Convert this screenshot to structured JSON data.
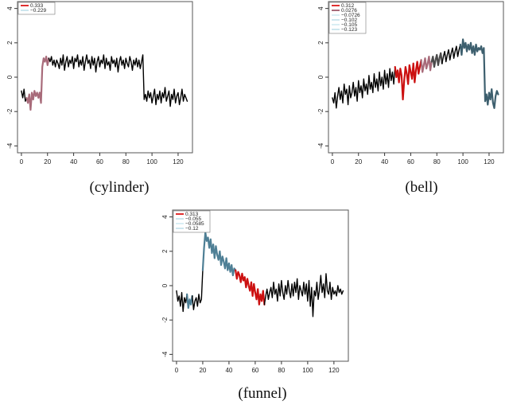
{
  "colors": {
    "base": "#000000",
    "red": "#cc1111",
    "legend_red": "#e03030",
    "mauve": "#a86b7a",
    "teal_dark": "#3d5f6e",
    "teal_mid": "#4e7f95",
    "slate": "#4a4a4a",
    "pale_blue": "#cde6ee",
    "pale_cyan": "#d9eef4",
    "frame": "#555555"
  },
  "chart_data": [
    {
      "type": "line",
      "caption": "(cylinder)",
      "xlim": [
        -3,
        131
      ],
      "ylim": [
        -4.4,
        4.4
      ],
      "xticks": [
        0,
        20,
        40,
        60,
        80,
        100,
        120
      ],
      "yticks": [
        -4,
        -2,
        0,
        2,
        4
      ],
      "legend_position": "top-left",
      "legend": [
        {
          "label": "0.333",
          "color": "legend_red"
        },
        {
          "label": "−0.229",
          "color": "pale_blue"
        }
      ],
      "y": [
        -0.8,
        -1.2,
        -0.7,
        -1.4,
        -1.2,
        -1.5,
        -1.0,
        -1.9,
        -0.9,
        -1.3,
        -0.8,
        -1.1,
        -0.9,
        -1.2,
        -0.9,
        -1.5,
        0.6,
        1.1,
        0.9,
        1.2,
        0.7,
        1.1,
        0.9,
        1.2,
        0.7,
        1.0,
        0.6,
        1.0,
        0.8,
        0.5,
        1.1,
        0.7,
        1.3,
        0.4,
        0.9,
        1.2,
        0.6,
        1.0,
        0.8,
        1.2,
        0.5,
        1.1,
        0.9,
        1.3,
        0.6,
        1.0,
        0.7,
        1.2,
        0.4,
        0.9,
        1.3,
        0.8,
        1.0,
        0.5,
        1.2,
        0.7,
        1.1,
        0.3,
        0.9,
        1.2,
        0.6,
        1.0,
        0.8,
        1.3,
        0.5,
        1.1,
        0.7,
        0.9,
        0.4,
        1.2,
        0.8,
        1.0,
        0.6,
        1.1,
        0.3,
        0.9,
        1.2,
        0.7,
        1.0,
        0.5,
        1.1,
        0.8,
        0.6,
        1.2,
        0.9,
        0.4,
        1.0,
        0.7,
        1.1,
        0.6,
        1.0,
        0.5,
        0.9,
        1.3,
        -1.3,
        -1.0,
        -1.4,
        -0.8,
        -1.2,
        -0.9,
        -1.5,
        -1.1,
        -0.7,
        -1.6,
        -1.0,
        -1.3,
        -0.8,
        -1.5,
        -0.9,
        -1.2,
        -0.6,
        -1.4,
        -1.1,
        -0.8,
        -1.7,
        -1.0,
        -1.3,
        -0.7,
        -1.5,
        -1.1,
        -0.9,
        -1.6,
        -1.2,
        -0.7,
        -1.4,
        -1.0,
        -1.2,
        -1.4
      ],
      "segments": [
        {
          "from": 0,
          "to": 4,
          "color": "base"
        },
        {
          "from": 4,
          "to": 14,
          "color": "mauve"
        },
        {
          "from": 14,
          "to": 21,
          "color": "mauve"
        },
        {
          "from": 21,
          "to": 127,
          "color": "base"
        }
      ]
    },
    {
      "type": "line",
      "caption": "(bell)",
      "xlim": [
        -3,
        131
      ],
      "ylim": [
        -4.4,
        4.4
      ],
      "xticks": [
        0,
        20,
        40,
        60,
        80,
        100,
        120
      ],
      "yticks": [
        -4,
        -2,
        0,
        2,
        4
      ],
      "legend_position": "top-left",
      "legend": [
        {
          "label": "0.312",
          "color": "legend_red"
        },
        {
          "label": "0.0276",
          "color": "mauve"
        },
        {
          "label": "−0.0726",
          "color": "pale_cyan"
        },
        {
          "label": "−0.102",
          "color": "pale_blue"
        },
        {
          "label": "−0.105",
          "color": "pale_cyan"
        },
        {
          "label": "−0.123",
          "color": "pale_blue"
        }
      ],
      "y": [
        -1.2,
        -1.5,
        -0.9,
        -1.8,
        -1.1,
        -0.6,
        -1.3,
        -0.8,
        -1.5,
        -0.4,
        -1.0,
        -0.7,
        -1.6,
        -0.5,
        -1.2,
        -0.9,
        -0.3,
        -1.1,
        -0.6,
        -1.4,
        -0.2,
        -0.9,
        -0.5,
        -1.2,
        -0.1,
        -0.8,
        -0.4,
        -1.0,
        0.1,
        -0.7,
        -0.3,
        -0.9,
        0.2,
        -0.6,
        -0.1,
        -0.8,
        0.3,
        -0.5,
        0.0,
        -0.7,
        0.4,
        -0.4,
        0.2,
        -0.6,
        0.5,
        -0.2,
        0.3,
        -0.4,
        0.6,
        0.0,
        0.4,
        -0.3,
        0.5,
        0.1,
        -1.3,
        -0.2,
        0.6,
        0.2,
        -0.4,
        0.7,
        0.3,
        -0.1,
        0.8,
        -0.3,
        0.4,
        0.9,
        0.2,
        0.6,
        1.0,
        0.3,
        0.7,
        1.1,
        0.5,
        0.8,
        1.2,
        0.4,
        0.9,
        1.2,
        0.6,
        1.0,
        1.3,
        0.7,
        1.1,
        1.4,
        0.8,
        1.2,
        1.5,
        0.9,
        1.3,
        1.6,
        1.0,
        1.4,
        1.7,
        1.1,
        1.5,
        1.8,
        1.2,
        1.6,
        1.9,
        1.3,
        2.2,
        1.7,
        2.0,
        1.5,
        1.9,
        1.6,
        2.0,
        1.4,
        1.8,
        1.3,
        1.9,
        1.5,
        1.7,
        1.6,
        1.8,
        1.4,
        1.7,
        -1.4,
        -1.0,
        -1.6,
        -0.9,
        -1.3,
        -0.7,
        -1.5,
        -1.8,
        -1.1,
        -0.8,
        -1.0,
        -1.3
      ],
      "segments": [
        {
          "from": 0,
          "to": 48,
          "color": "base"
        },
        {
          "from": 48,
          "to": 68,
          "color": "red"
        },
        {
          "from": 68,
          "to": 76,
          "color": "mauve"
        },
        {
          "from": 76,
          "to": 84,
          "color": "slate"
        },
        {
          "from": 84,
          "to": 98,
          "color": "base"
        },
        {
          "from": 98,
          "to": 127,
          "color": "teal_dark"
        }
      ]
    },
    {
      "type": "line",
      "caption": "(funnel)",
      "xlim": [
        -3,
        131
      ],
      "ylim": [
        -4.4,
        4.4
      ],
      "xticks": [
        0,
        20,
        40,
        60,
        80,
        100,
        120
      ],
      "yticks": [
        -4,
        -2,
        0,
        2,
        4
      ],
      "legend_position": "top-left",
      "legend": [
        {
          "label": "0.313",
          "color": "legend_red"
        },
        {
          "label": "−0.055",
          "color": "pale_blue"
        },
        {
          "label": "−0.0585",
          "color": "pale_cyan"
        },
        {
          "label": "−0.12",
          "color": "pale_blue"
        }
      ],
      "y": [
        -0.3,
        -0.9,
        -0.6,
        -1.2,
        -0.4,
        -1.5,
        -0.7,
        -1.0,
        -0.5,
        -1.3,
        -0.8,
        -1.1,
        -0.6,
        -1.4,
        -0.9,
        -0.7,
        -1.2,
        -0.5,
        -1.0,
        -0.8,
        0.9,
        2.2,
        3.1,
        2.6,
        2.8,
        2.2,
        2.7,
        1.9,
        2.4,
        1.6,
        2.3,
        1.8,
        1.5,
        2.0,
        1.2,
        1.7,
        1.4,
        1.0,
        1.6,
        0.9,
        1.3,
        0.8,
        1.2,
        0.6,
        1.0,
        0.9,
        0.4,
        0.8,
        0.6,
        0.2,
        0.7,
        0.3,
        0.5,
        -0.1,
        0.4,
        0.0,
        -0.3,
        0.2,
        -0.6,
        0.1,
        -0.4,
        -0.8,
        -0.2,
        -1.1,
        -0.5,
        -0.9,
        -0.3,
        -1.1,
        -0.6,
        -0.2,
        -0.8,
        -0.4,
        -0.1,
        -0.7,
        0.2,
        -0.5,
        -0.2,
        -0.9,
        0.1,
        -0.6,
        0.3,
        -0.4,
        -0.8,
        0.0,
        -0.5,
        0.3,
        -0.3,
        -0.7,
        0.1,
        -0.6,
        0.2,
        -0.4,
        0.4,
        -0.8,
        0.0,
        -0.3,
        -0.6,
        0.2,
        -0.5,
        0.1,
        -0.9,
        0.3,
        -1.2,
        -0.1,
        -1.8,
        -0.3,
        -0.6,
        0.2,
        -0.8,
        -0.2,
        0.6,
        -0.4,
        0.1,
        -0.7,
        0.7,
        -0.3,
        -0.5,
        0.2,
        -0.8,
        -0.1,
        -0.5,
        -0.3,
        -0.6,
        0.0,
        -0.4,
        -0.2,
        -0.5,
        -0.3
      ],
      "segments": [
        {
          "from": 0,
          "to": 8,
          "color": "base"
        },
        {
          "from": 8,
          "to": 12,
          "color": "teal_mid"
        },
        {
          "from": 12,
          "to": 20,
          "color": "base"
        },
        {
          "from": 20,
          "to": 45,
          "color": "teal_mid"
        },
        {
          "from": 45,
          "to": 67,
          "color": "red"
        },
        {
          "from": 67,
          "to": 127,
          "color": "base"
        }
      ]
    }
  ]
}
